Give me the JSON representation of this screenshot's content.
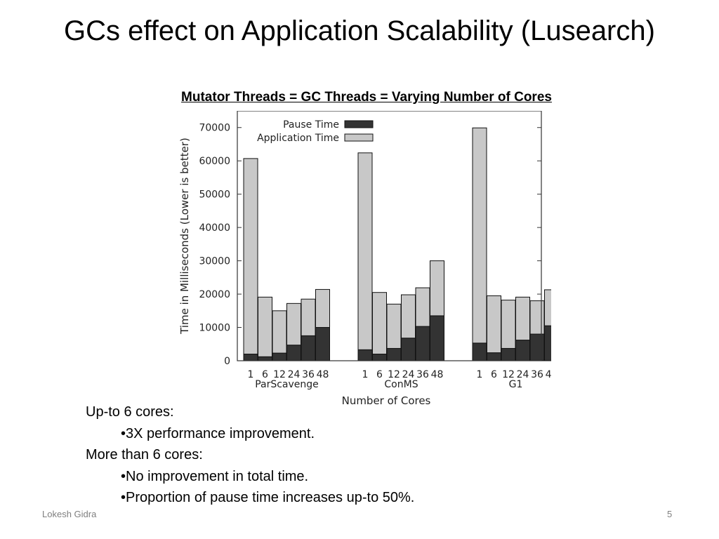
{
  "slide": {
    "title": "GCs effect on Application Scalability (Lusearch)",
    "chart_heading": "Mutator Threads = GC Threads = Varying Number of Cores",
    "notes": [
      {
        "level": 1,
        "text": "Up-to 6 cores:"
      },
      {
        "level": 2,
        "text": "•3X performance improvement."
      },
      {
        "level": 1,
        "text": "More than 6 cores:"
      },
      {
        "level": 2,
        "text": "•No improvement in total time."
      },
      {
        "level": 2,
        "text": "•Proportion of pause time increases up-to 50%."
      }
    ],
    "footer_left": "Lokesh Gidra",
    "page_number": "5"
  },
  "chart_data": {
    "type": "bar",
    "stacked": true,
    "ylabel": "Time in Milliseconds (Lower is better)",
    "xlabel": "Number of Cores",
    "ylim": [
      0,
      75000
    ],
    "yticks": [
      0,
      10000,
      20000,
      30000,
      40000,
      50000,
      60000,
      70000
    ],
    "groups": [
      "ParScavenge",
      "ConMS",
      "G1"
    ],
    "categories": [
      "1",
      "6",
      "12",
      "24",
      "36",
      "48"
    ],
    "legend_position": "top-left",
    "series": [
      {
        "name": "Pause Time",
        "color": "#333333",
        "values": [
          [
            2000,
            1200,
            2300,
            4700,
            7500,
            10000
          ],
          [
            3300,
            2000,
            3700,
            6800,
            10300,
            13500
          ],
          [
            5300,
            2400,
            3700,
            6200,
            8000,
            10500
          ]
        ]
      },
      {
        "name": "Application Time",
        "color": "#c8c8c8",
        "values": [
          [
            58700,
            17900,
            12700,
            12500,
            11000,
            11400
          ],
          [
            59100,
            18500,
            13300,
            13000,
            11600,
            16500
          ],
          [
            64600,
            17100,
            14500,
            12900,
            10000,
            10800
          ]
        ]
      }
    ]
  }
}
